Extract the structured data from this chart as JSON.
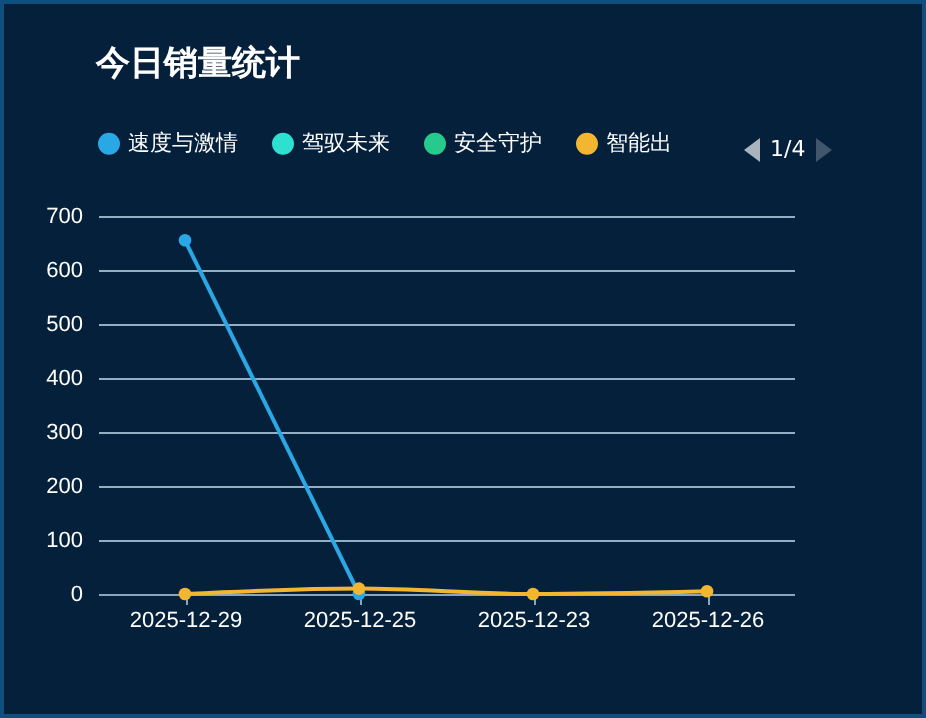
{
  "chart_data": {
    "type": "line",
    "title": "今日销量统计",
    "categories": [
      "2025-12-29",
      "2025-12-25",
      "2025-12-23",
      "2025-12-26"
    ],
    "series": [
      {
        "name": "速度与激情",
        "color": "#2aa8e6",
        "values": [
          655,
          0,
          null,
          null
        ]
      },
      {
        "name": "驾驭未来",
        "color": "#2ee0d0",
        "values": [
          null,
          null,
          null,
          null
        ]
      },
      {
        "name": "安全守护",
        "color": "#27c98c",
        "values": [
          null,
          null,
          null,
          null
        ]
      },
      {
        "name": "智能出",
        "color": "#f2b630",
        "values": [
          0,
          10,
          0,
          5
        ]
      }
    ],
    "ylim": [
      0,
      700
    ],
    "yticks": [
      0,
      100,
      200,
      300,
      400,
      500,
      600,
      700
    ],
    "grid": "y",
    "legend": "top",
    "marker": "circle",
    "annotations": [
      "1/4"
    ]
  }
}
